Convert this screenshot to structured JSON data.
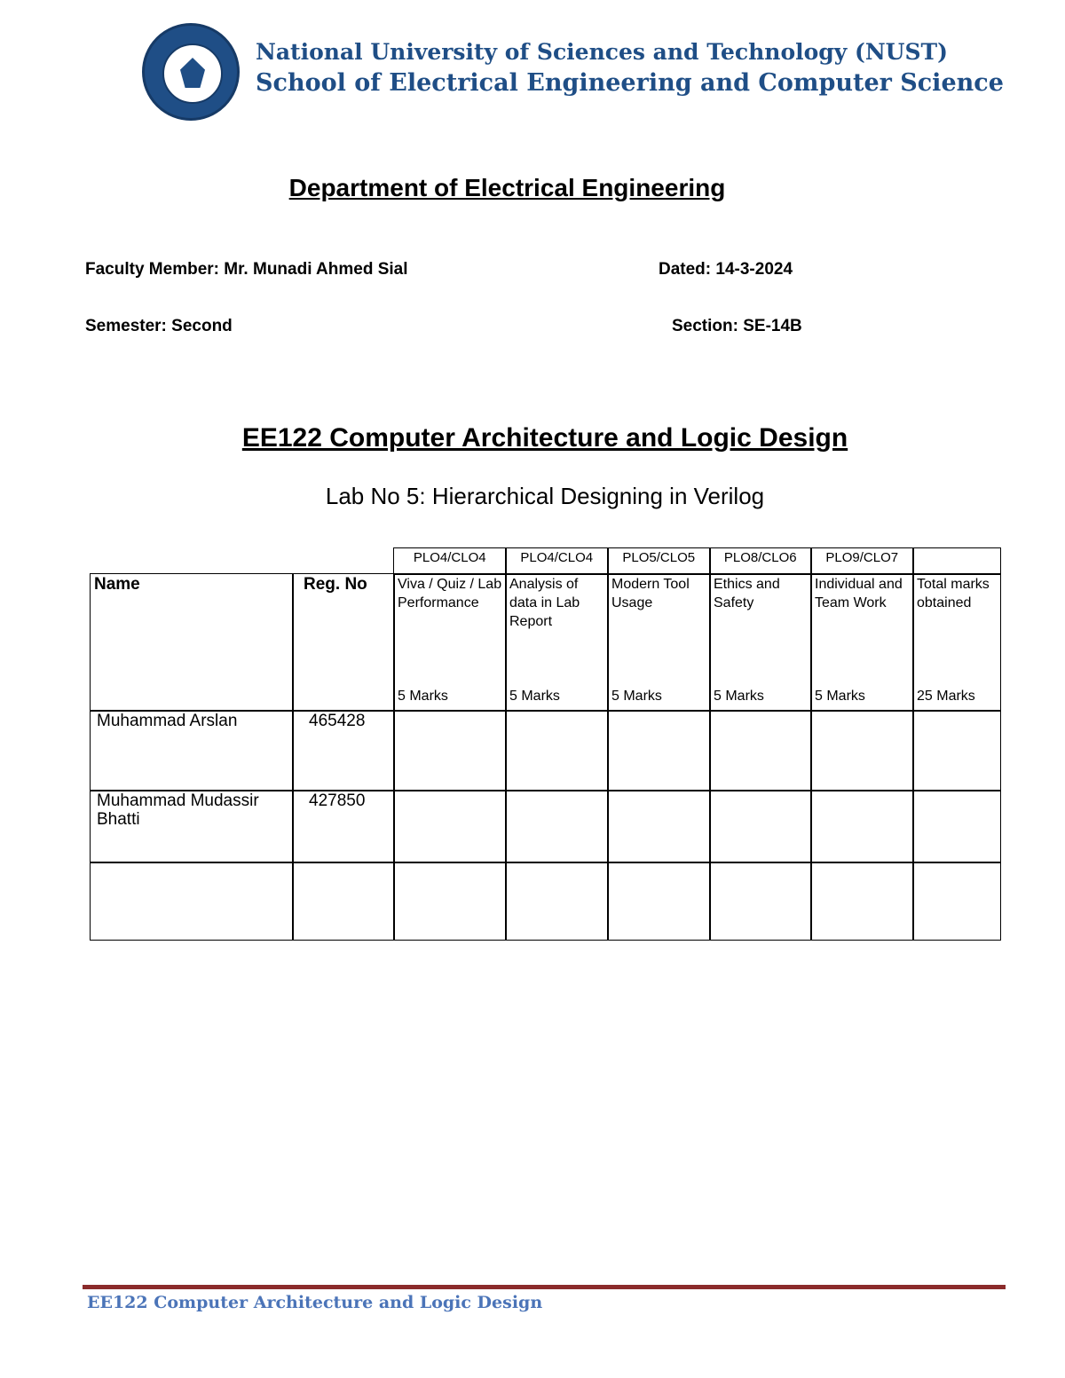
{
  "header": {
    "university": "National University of Sciences and Technology (NUST)",
    "school": "School of Electrical Engineering and Computer Science",
    "logo": "nust-seal"
  },
  "department": "Department of Electrical Engineering",
  "meta": {
    "faculty": "Faculty Member: Mr. Munadi Ahmed Sial",
    "dated": "Dated: 14-3-2024",
    "semester": "Semester:  Second",
    "section": "Section: SE-14B"
  },
  "course": "EE122 Computer Architecture and Logic Design",
  "lab": {
    "prefix": "Lab No 5:",
    "title": " Hierarchical Designing in Verilog"
  },
  "table": {
    "plo": [
      "PLO4/CLO4",
      "PLO4/CLO4",
      "PLO5/CLO5",
      "PLO8/CLO6",
      "PLO9/CLO7",
      ""
    ],
    "name_header": "Name",
    "reg_header": "Reg. No",
    "columns": [
      {
        "label": "Viva / Quiz / Lab Performance",
        "marks": "5 Marks"
      },
      {
        "label": "Analysis of data in Lab Report",
        "marks": "5 Marks"
      },
      {
        "label": "Modern Tool Usage",
        "marks": "5 Marks"
      },
      {
        "label": "Ethics and Safety",
        "marks": "5 Marks"
      },
      {
        "label": "Individual and Team Work",
        "marks": "5 Marks"
      },
      {
        "label": "Total marks obtained",
        "marks": "25 Marks"
      }
    ],
    "rows": [
      {
        "name": "Muhammad Arslan",
        "reg": "465428"
      },
      {
        "name": "Muhammad Mudassir Bhatti",
        "reg": "427850"
      },
      {
        "name": "",
        "reg": ""
      }
    ]
  },
  "footer": "EE122 Computer Architecture and Logic Design"
}
